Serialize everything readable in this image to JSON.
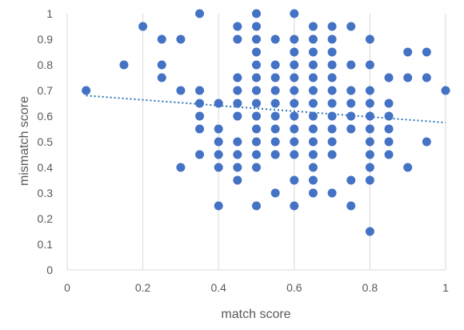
{
  "chart_data": {
    "type": "scatter",
    "xlabel": "match score",
    "ylabel": "mismatch score",
    "xlim": [
      0,
      1
    ],
    "ylim": [
      0,
      1
    ],
    "x_ticks": [
      "0",
      "0.2",
      "0.4",
      "0.6",
      "0.8",
      "1"
    ],
    "y_ticks": [
      "0",
      "0.1",
      "0.2",
      "0.3",
      "0.4",
      "0.5",
      "0.6",
      "0.7",
      "0.8",
      "0.9",
      "1"
    ],
    "grid": {
      "vertical": true,
      "horizontal": false
    },
    "point_color": "#4472C4",
    "trendline": {
      "type": "linear",
      "style": "dotted",
      "color": "#2E75B6",
      "start": [
        0.05,
        0.68
      ],
      "end": [
        1.0,
        0.575
      ]
    },
    "points": [
      [
        0.05,
        0.7
      ],
      [
        0.15,
        0.8
      ],
      [
        0.2,
        0.95
      ],
      [
        0.25,
        0.9
      ],
      [
        0.25,
        0.8
      ],
      [
        0.25,
        0.75
      ],
      [
        0.3,
        0.9
      ],
      [
        0.3,
        0.7
      ],
      [
        0.3,
        0.4
      ],
      [
        0.35,
        1.0
      ],
      [
        0.35,
        0.7
      ],
      [
        0.35,
        0.65
      ],
      [
        0.35,
        0.6
      ],
      [
        0.35,
        0.55
      ],
      [
        0.35,
        0.45
      ],
      [
        0.4,
        0.65
      ],
      [
        0.4,
        0.55
      ],
      [
        0.4,
        0.5
      ],
      [
        0.4,
        0.45
      ],
      [
        0.4,
        0.4
      ],
      [
        0.4,
        0.25
      ],
      [
        0.45,
        0.95
      ],
      [
        0.45,
        0.9
      ],
      [
        0.45,
        0.75
      ],
      [
        0.45,
        0.7
      ],
      [
        0.45,
        0.65
      ],
      [
        0.45,
        0.6
      ],
      [
        0.45,
        0.5
      ],
      [
        0.45,
        0.45
      ],
      [
        0.45,
        0.4
      ],
      [
        0.45,
        0.35
      ],
      [
        0.5,
        1.0
      ],
      [
        0.5,
        0.95
      ],
      [
        0.5,
        0.9
      ],
      [
        0.5,
        0.85
      ],
      [
        0.5,
        0.8
      ],
      [
        0.5,
        0.75
      ],
      [
        0.5,
        0.7
      ],
      [
        0.5,
        0.65
      ],
      [
        0.5,
        0.6
      ],
      [
        0.5,
        0.55
      ],
      [
        0.5,
        0.5
      ],
      [
        0.5,
        0.45
      ],
      [
        0.5,
        0.4
      ],
      [
        0.5,
        0.25
      ],
      [
        0.55,
        0.9
      ],
      [
        0.55,
        0.8
      ],
      [
        0.55,
        0.75
      ],
      [
        0.55,
        0.7
      ],
      [
        0.55,
        0.65
      ],
      [
        0.55,
        0.6
      ],
      [
        0.55,
        0.55
      ],
      [
        0.55,
        0.5
      ],
      [
        0.55,
        0.45
      ],
      [
        0.55,
        0.3
      ],
      [
        0.6,
        1.0
      ],
      [
        0.6,
        0.9
      ],
      [
        0.6,
        0.85
      ],
      [
        0.6,
        0.8
      ],
      [
        0.6,
        0.75
      ],
      [
        0.6,
        0.7
      ],
      [
        0.6,
        0.65
      ],
      [
        0.6,
        0.6
      ],
      [
        0.6,
        0.55
      ],
      [
        0.6,
        0.5
      ],
      [
        0.6,
        0.45
      ],
      [
        0.6,
        0.35
      ],
      [
        0.6,
        0.25
      ],
      [
        0.65,
        0.95
      ],
      [
        0.65,
        0.9
      ],
      [
        0.65,
        0.85
      ],
      [
        0.65,
        0.8
      ],
      [
        0.65,
        0.75
      ],
      [
        0.65,
        0.7
      ],
      [
        0.65,
        0.65
      ],
      [
        0.65,
        0.6
      ],
      [
        0.65,
        0.55
      ],
      [
        0.65,
        0.5
      ],
      [
        0.65,
        0.45
      ],
      [
        0.65,
        0.4
      ],
      [
        0.65,
        0.35
      ],
      [
        0.65,
        0.3
      ],
      [
        0.7,
        0.95
      ],
      [
        0.7,
        0.9
      ],
      [
        0.7,
        0.85
      ],
      [
        0.7,
        0.8
      ],
      [
        0.7,
        0.75
      ],
      [
        0.7,
        0.7
      ],
      [
        0.7,
        0.65
      ],
      [
        0.7,
        0.6
      ],
      [
        0.7,
        0.55
      ],
      [
        0.7,
        0.5
      ],
      [
        0.7,
        0.45
      ],
      [
        0.7,
        0.3
      ],
      [
        0.75,
        0.95
      ],
      [
        0.75,
        0.8
      ],
      [
        0.75,
        0.7
      ],
      [
        0.75,
        0.65
      ],
      [
        0.75,
        0.6
      ],
      [
        0.75,
        0.55
      ],
      [
        0.75,
        0.35
      ],
      [
        0.75,
        0.25
      ],
      [
        0.8,
        0.9
      ],
      [
        0.8,
        0.8
      ],
      [
        0.8,
        0.7
      ],
      [
        0.8,
        0.65
      ],
      [
        0.8,
        0.6
      ],
      [
        0.8,
        0.55
      ],
      [
        0.8,
        0.5
      ],
      [
        0.8,
        0.45
      ],
      [
        0.8,
        0.4
      ],
      [
        0.8,
        0.35
      ],
      [
        0.8,
        0.15
      ],
      [
        0.85,
        0.75
      ],
      [
        0.85,
        0.65
      ],
      [
        0.85,
        0.6
      ],
      [
        0.85,
        0.55
      ],
      [
        0.85,
        0.5
      ],
      [
        0.85,
        0.45
      ],
      [
        0.9,
        0.85
      ],
      [
        0.9,
        0.75
      ],
      [
        0.9,
        0.4
      ],
      [
        0.95,
        0.85
      ],
      [
        0.95,
        0.75
      ],
      [
        0.95,
        0.5
      ],
      [
        1.0,
        0.7
      ]
    ]
  }
}
